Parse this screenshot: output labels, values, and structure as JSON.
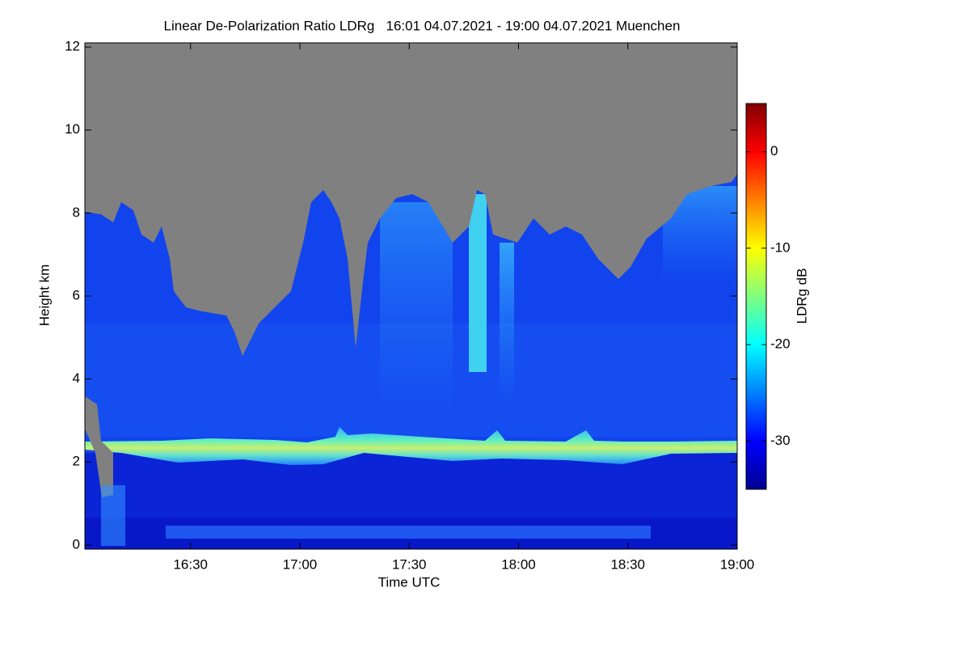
{
  "chart_data": {
    "type": "heatmap",
    "title": "Linear De-Polarization Ratio LDRg   16:01 04.07.2021 - 19:00 04.07.2021 Muenchen",
    "x_label": "Time UTC",
    "y_label": "Height km",
    "colorbar_label": "LDRg dB",
    "xlim": [
      "16:01",
      "19:00"
    ],
    "xticks": [
      "16:30",
      "17:00",
      "17:30",
      "18:00",
      "18:30",
      "19:00"
    ],
    "ylim": [
      -0.1,
      12.1
    ],
    "yticks": [
      0,
      2,
      4,
      6,
      8,
      10,
      12
    ],
    "clim": [
      -35,
      5
    ],
    "cticks": [
      -30,
      -20,
      -10,
      0
    ],
    "colormap": "jet"
  }
}
